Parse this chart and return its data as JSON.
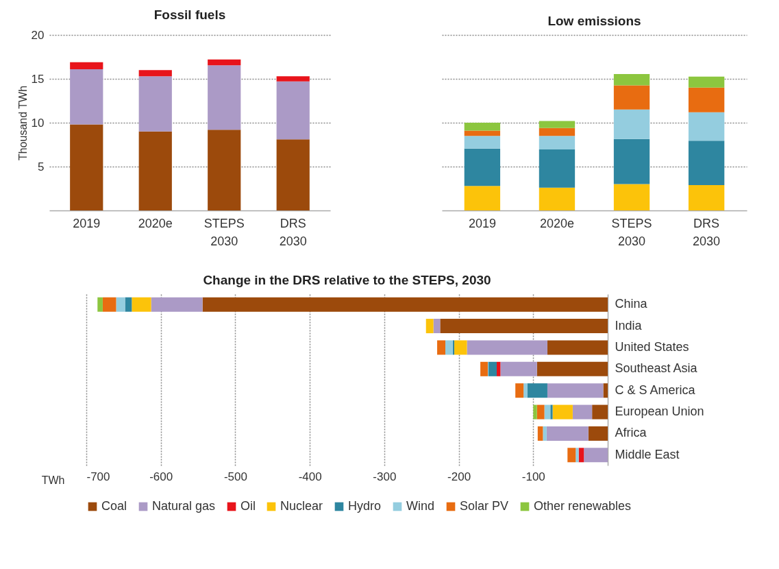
{
  "chart_data": [
    {
      "type": "bar",
      "title": "Fossil fuels",
      "ylabel": "Thousand TWh",
      "categories": [
        "2019",
        "2020e",
        "STEPS 2030",
        "DRS 2030"
      ],
      "stacked": true,
      "ylim": [
        0,
        20
      ],
      "yticks": [
        5,
        10,
        15,
        20
      ],
      "grid": "y",
      "series": [
        {
          "color": "#9c4a0c",
          "values": [
            9.8,
            9.0,
            9.2,
            8.1
          ]
        },
        {
          "color": "#ab9ac6",
          "values": [
            6.3,
            6.3,
            7.35,
            6.6
          ]
        },
        {
          "color": "#e8141b",
          "values": [
            0.8,
            0.7,
            0.65,
            0.6
          ]
        }
      ]
    },
    {
      "type": "bar",
      "title": "Low emissions",
      "categories": [
        "2019",
        "2020e",
        "STEPS 2030",
        "DRS 2030"
      ],
      "stacked": true,
      "ylim": [
        0,
        20
      ],
      "yticks": [
        5,
        10,
        15,
        20
      ],
      "grid": "y",
      "tick_labels": "x",
      "series": [
        {
          "color": "#fcc30a",
          "values": [
            2.8,
            2.6,
            3.0,
            2.9
          ]
        },
        {
          "color": "#2e86a0",
          "values": [
            4.25,
            4.35,
            5.15,
            5.05
          ]
        },
        {
          "color": "#94cddf",
          "values": [
            1.45,
            1.55,
            3.35,
            3.25
          ]
        },
        {
          "color": "#e86c11",
          "values": [
            0.6,
            0.9,
            2.75,
            2.8
          ]
        },
        {
          "color": "#8cc63f",
          "values": [
            0.9,
            0.8,
            1.3,
            1.25
          ]
        }
      ]
    },
    {
      "type": "bar",
      "title": "Change in the DRS relative to the STEPS, 2030",
      "xlabel": "TWh",
      "orientation": "horizontal",
      "stacked": true,
      "categories": [
        "China",
        "India",
        "United States",
        "Southeast Asia",
        "C & S America",
        "European Union",
        "Africa",
        "Middle East"
      ],
      "xlim": [
        -700,
        0
      ],
      "xticks": [
        -700,
        -600,
        -500,
        -400,
        -300,
        -200,
        -100
      ],
      "grid": "x",
      "legend": "bottom",
      "series": [
        {
          "name": "Coal",
          "color": "#9c4a0c",
          "values": [
            -544,
            -225,
            -81,
            -95,
            -6,
            -21,
            -26,
            0
          ]
        },
        {
          "name": "Natural gas",
          "color": "#ab9ac6",
          "values": [
            -69,
            -9,
            -108,
            -49,
            -75,
            -26,
            -56,
            -32
          ]
        },
        {
          "name": "Oil",
          "color": "#e8141b",
          "values": [
            0,
            0,
            0,
            -5,
            0,
            0,
            0,
            -7
          ]
        },
        {
          "name": "Nuclear",
          "color": "#fcc30a",
          "values": [
            -26,
            -10,
            -17,
            0,
            0,
            -27,
            0,
            0
          ]
        },
        {
          "name": "Hydro",
          "color": "#2e86a0",
          "values": [
            -9,
            0,
            -2,
            -11,
            -27,
            -3,
            0,
            0
          ]
        },
        {
          "name": "Wind",
          "color": "#94cddf",
          "values": [
            -12,
            0,
            -10,
            -1,
            -5,
            -8,
            -5,
            -4
          ]
        },
        {
          "name": "Solar PV",
          "color": "#e86c11",
          "values": [
            -18,
            0,
            -11,
            -10,
            -11,
            -10,
            -7,
            -11
          ]
        },
        {
          "name": "Other renewables",
          "color": "#8cc63f",
          "values": [
            -7,
            0,
            0,
            0,
            0,
            -5,
            0,
            0
          ]
        }
      ]
    }
  ]
}
